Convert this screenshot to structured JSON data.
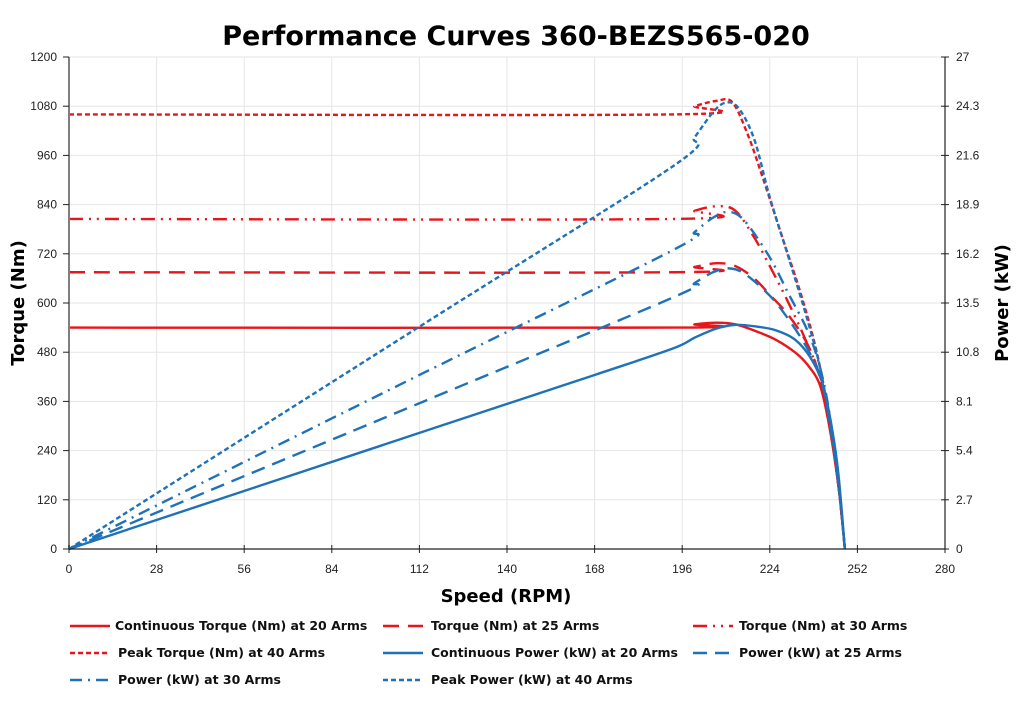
{
  "chart_data": {
    "type": "line",
    "title": "Performance Curves 360-BEZS565-020",
    "xlabel": "Speed (RPM)",
    "ylabel": "Torque (Nm)",
    "y2label": "Power (kW)",
    "xlim": [
      0,
      280
    ],
    "ylim": [
      0,
      1200
    ],
    "y2lim": [
      0,
      27
    ],
    "xticks": [
      "0",
      "28",
      "56",
      "84",
      "112",
      "140",
      "168",
      "196",
      "224",
      "252",
      "280"
    ],
    "yticks": [
      "0",
      "120",
      "240",
      "360",
      "480",
      "600",
      "720",
      "840",
      "960",
      "1080",
      "1200"
    ],
    "y2ticks": [
      "0",
      "2.7",
      "5.4",
      "8.1",
      "10.8",
      "13.5",
      "16.2",
      "18.9",
      "21.6",
      "24.3",
      "27"
    ],
    "grid": true,
    "legend_position": "bottom",
    "colors": {
      "torque": "#E8161C",
      "power": "#1F72B8"
    },
    "series": [
      {
        "name": "Continuous Torque (Nm) at 20 Arms",
        "axis": "left",
        "color": "torque",
        "dash": "solid",
        "points": [
          [
            0,
            540
          ],
          [
            193,
            540
          ],
          [
            200,
            548
          ],
          [
            207,
            552
          ],
          [
            213,
            548
          ],
          [
            220,
            530
          ],
          [
            226,
            510
          ],
          [
            232,
            480
          ],
          [
            236,
            450
          ],
          [
            240,
            400
          ],
          [
            243,
            300
          ],
          [
            246,
            150
          ],
          [
            248,
            0
          ]
        ]
      },
      {
        "name": "Torque (Nm) at 25 Arms",
        "axis": "left",
        "color": "torque",
        "dash": "dash",
        "points": [
          [
            0,
            675
          ],
          [
            193,
            675
          ],
          [
            200,
            688
          ],
          [
            207,
            697
          ],
          [
            213,
            690
          ],
          [
            219,
            660
          ],
          [
            224,
            620
          ],
          [
            230,
            570
          ],
          [
            236,
            500
          ],
          [
            240,
            420
          ],
          [
            243,
            310
          ],
          [
            246,
            150
          ],
          [
            248,
            0
          ]
        ]
      },
      {
        "name": "Torque (Nm) at 30 Arms",
        "axis": "left",
        "color": "torque",
        "dash": "dashdotdot",
        "points": [
          [
            0,
            805
          ],
          [
            193,
            805
          ],
          [
            200,
            825
          ],
          [
            207,
            836
          ],
          [
            213,
            825
          ],
          [
            219,
            760
          ],
          [
            224,
            690
          ],
          [
            230,
            600
          ],
          [
            236,
            500
          ],
          [
            240,
            420
          ],
          [
            243,
            310
          ],
          [
            246,
            150
          ],
          [
            248,
            0
          ]
        ]
      },
      {
        "name": "Peak Torque (Nm) at 40 Arms",
        "axis": "left",
        "color": "torque",
        "dash": "shortdash",
        "points": [
          [
            0,
            1060
          ],
          [
            193,
            1060
          ],
          [
            200,
            1080
          ],
          [
            207,
            1093
          ],
          [
            212,
            1090
          ],
          [
            217,
            1010
          ],
          [
            222,
            900
          ],
          [
            228,
            760
          ],
          [
            234,
            620
          ],
          [
            239,
            480
          ],
          [
            243,
            320
          ],
          [
            246,
            150
          ],
          [
            248,
            0
          ]
        ]
      },
      {
        "name": "Continuous Power (kW) at 20 Arms",
        "axis": "right",
        "color": "power",
        "dash": "solid",
        "points": [
          [
            0,
            0
          ],
          [
            112,
            6.37
          ],
          [
            168,
            9.55
          ],
          [
            193,
            11.0
          ],
          [
            200,
            11.6
          ],
          [
            207,
            12.1
          ],
          [
            213,
            12.3
          ],
          [
            220,
            12.2
          ],
          [
            226,
            12.0
          ],
          [
            232,
            11.5
          ],
          [
            237,
            10.5
          ],
          [
            241,
            9.0
          ],
          [
            244,
            6.5
          ],
          [
            246,
            4.0
          ],
          [
            248,
            0
          ]
        ]
      },
      {
        "name": "Power (kW) at 25 Arms",
        "axis": "right",
        "color": "power",
        "dash": "longdash",
        "points": [
          [
            0,
            0
          ],
          [
            112,
            8.0
          ],
          [
            193,
            13.8
          ],
          [
            200,
            14.6
          ],
          [
            206,
            15.2
          ],
          [
            211,
            15.4
          ],
          [
            216,
            15.1
          ],
          [
            224,
            13.9
          ],
          [
            230,
            12.6
          ],
          [
            236,
            11.0
          ],
          [
            240,
            9.5
          ],
          [
            243,
            7.2
          ],
          [
            246,
            3.5
          ],
          [
            248,
            0
          ]
        ]
      },
      {
        "name": "Power (kW) at 30 Arms",
        "axis": "right",
        "color": "power",
        "dash": "dashdot",
        "points": [
          [
            0,
            0
          ],
          [
            112,
            9.55
          ],
          [
            193,
            16.4
          ],
          [
            200,
            17.4
          ],
          [
            206,
            18.2
          ],
          [
            211,
            18.5
          ],
          [
            216,
            18.0
          ],
          [
            224,
            16.0
          ],
          [
            230,
            14.0
          ],
          [
            236,
            12.0
          ],
          [
            240,
            10.0
          ],
          [
            243,
            7.5
          ],
          [
            246,
            3.5
          ],
          [
            248,
            0
          ]
        ]
      },
      {
        "name": "Peak Power (kW) at 40 Arms",
        "axis": "right",
        "color": "power",
        "dash": "shortdash",
        "points": [
          [
            0,
            0
          ],
          [
            112,
            12.2
          ],
          [
            193,
            21.0
          ],
          [
            200,
            22.6
          ],
          [
            206,
            24.0
          ],
          [
            210,
            24.5
          ],
          [
            214,
            24.2
          ],
          [
            219,
            22.5
          ],
          [
            224,
            19.3
          ],
          [
            230,
            16.0
          ],
          [
            236,
            12.6
          ],
          [
            240,
            10.0
          ],
          [
            243,
            7.0
          ],
          [
            246,
            3.5
          ],
          [
            248,
            0
          ]
        ]
      }
    ]
  }
}
